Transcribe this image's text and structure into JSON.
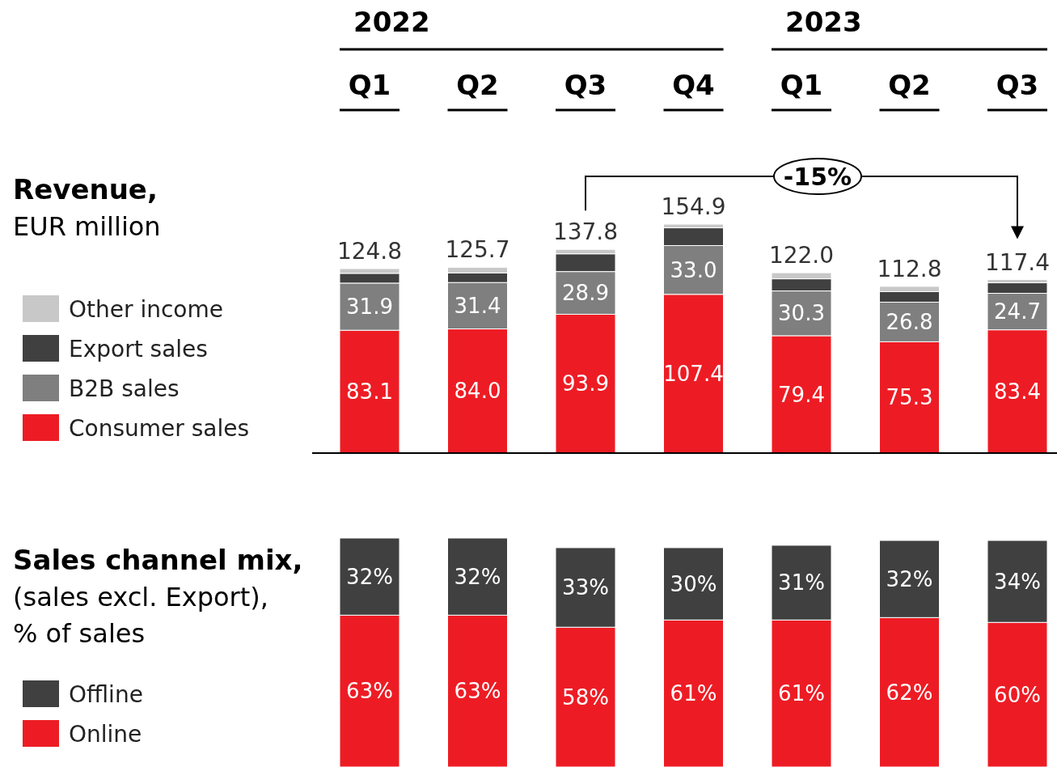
{
  "chart_data": [
    {
      "type": "bar",
      "title": "Revenue,",
      "subtitle": "EUR million",
      "stacked": true,
      "legend": "left",
      "categories": [
        "Q1",
        "Q2",
        "Q3",
        "Q4",
        "Q1",
        "Q2",
        "Q3"
      ],
      "annotations": [
        "2022",
        "2023",
        "-15%"
      ],
      "series": [
        {
          "name": "Consumer sales",
          "color": "#ed1c24",
          "values": [
            83.1,
            84.0,
            93.9,
            107.4,
            79.4,
            75.3,
            83.4
          ],
          "value_labels": [
            "83.1",
            "84.0",
            "93.9",
            "107.4",
            "79.4",
            "75.3",
            "83.4"
          ]
        },
        {
          "name": "B2B sales",
          "color": "#7f7f7f",
          "values": [
            31.9,
            31.4,
            28.9,
            33.0,
            30.3,
            26.8,
            24.7
          ],
          "value_labels": [
            "31.9",
            "31.4",
            "28.9",
            "33.0",
            "30.3",
            "26.8",
            "24.7"
          ]
        },
        {
          "name": "Export sales",
          "color": "#404040",
          "values": [
            6.6,
            6.5,
            12.0,
            12.0,
            8.2,
            7.1,
            7.1
          ]
        },
        {
          "name": "Other income",
          "color": "#c8c8c8",
          "values": [
            3.2,
            3.8,
            3.0,
            2.5,
            4.1,
            3.6,
            2.2
          ]
        }
      ],
      "totals": [
        "124.8",
        "125.7",
        "137.8",
        "154.9",
        "122.0",
        "112.8",
        "117.4"
      ]
    },
    {
      "type": "bar",
      "title": "Sales channel mix,",
      "subtitle": "(sales excl. Export), % of sales",
      "stacked": true,
      "legend": "left",
      "tick_labels": false,
      "categories": [
        "Q1",
        "Q2",
        "Q3",
        "Q4",
        "Q1",
        "Q2",
        "Q3"
      ],
      "series": [
        {
          "name": "Online",
          "color": "#ed1c24",
          "values": [
            63,
            63,
            58,
            61,
            61,
            62,
            60
          ],
          "value_labels": [
            "63%",
            "63%",
            "58%",
            "61%",
            "61%",
            "62%",
            "60%"
          ]
        },
        {
          "name": "Offline",
          "color": "#404040",
          "values": [
            32,
            32,
            33,
            30,
            31,
            32,
            34
          ],
          "value_labels": [
            "32%",
            "32%",
            "33%",
            "30%",
            "31%",
            "32%",
            "34%"
          ]
        }
      ]
    }
  ]
}
